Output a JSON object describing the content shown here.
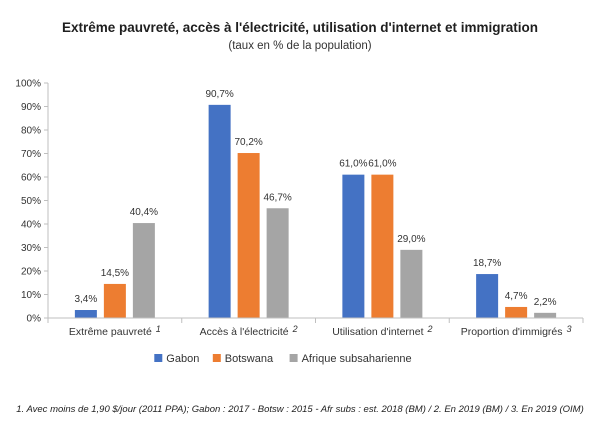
{
  "chart_data": {
    "type": "bar",
    "title": "Extrême pauvreté, accès à l'électricité, utilisation d'internet et immigration",
    "subtitle": "(taux en % de la population)",
    "categories": [
      "Extrême pauvreté",
      "Accès à l'électricité",
      "Utilisation d'internet",
      "Proportion d'immigrés"
    ],
    "category_notes": [
      "1",
      "2",
      "2",
      "3"
    ],
    "series": [
      {
        "name": "Gabon",
        "color": "#4472C4",
        "values": [
          3.4,
          90.7,
          61.0,
          18.7
        ],
        "labels": [
          "3,4%",
          "90,7%",
          "61,0%",
          "18,7%"
        ]
      },
      {
        "name": "Botswana",
        "color": "#ED7D31",
        "values": [
          14.5,
          70.2,
          61.0,
          4.7
        ],
        "labels": [
          "14,5%",
          "70,2%",
          "61,0%",
          "4,7%"
        ]
      },
      {
        "name": "Afrique subsaharienne",
        "color": "#A5A5A5",
        "values": [
          40.4,
          46.7,
          29.0,
          2.2
        ],
        "labels": [
          "40,4%",
          "46,7%",
          "29,0%",
          "2,2%"
        ]
      }
    ],
    "ylim": [
      0,
      100
    ],
    "yticks": [
      "0%",
      "10%",
      "20%",
      "30%",
      "40%",
      "50%",
      "60%",
      "70%",
      "80%",
      "90%",
      "100%"
    ],
    "grid": false,
    "legend": "bottom",
    "footnote": "1. Avec moins de 1,90 $/jour (2011 PPA); Gabon : 2017 - Botsw : 2015 - Afr subs : est. 2018 (BM) / 2. En 2019 (BM) / 3. En 2019 (OIM)"
  }
}
